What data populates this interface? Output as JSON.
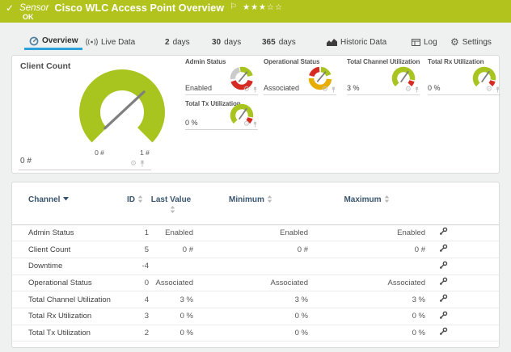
{
  "theme": {
    "brand_green": "#b2c31d",
    "gauge_green": "#a8c41f",
    "status_red": "#d62b23",
    "status_yellow": "#e7ae00",
    "status_gray": "#cbcbcb",
    "accent_blue": "#2ba3da",
    "table_header_navy": "#3a556e",
    "needle_gray": "#7f7f7f"
  },
  "header": {
    "kind_label": "Sensor",
    "title": "Cisco WLC Access Point Overview",
    "status": "OK",
    "rating": {
      "filled": 3,
      "total": 5
    }
  },
  "tabs": [
    {
      "label": "Overview",
      "icon": "gauge",
      "active": true
    },
    {
      "label": "Live Data",
      "icon": "signal"
    },
    {
      "strong": "2",
      "label": "days"
    },
    {
      "strong": "30",
      "label": "days"
    },
    {
      "strong": "365",
      "label": "days"
    },
    {
      "label": "Historic Data",
      "icon": "chart"
    },
    {
      "label": "Log",
      "icon": "log"
    },
    {
      "label": "Settings",
      "icon": "gear"
    }
  ],
  "gauges": {
    "client_count": {
      "label": "Client Count",
      "value": "0 #",
      "scale_min": "0 #",
      "scale_max": "1 #"
    },
    "small": [
      {
        "label": "Admin Status",
        "value": "Enabled",
        "type": "admin"
      },
      {
        "label": "Operational Status",
        "value": "Associated",
        "type": "operational"
      },
      {
        "label": "Total Channel Utilization",
        "value": "3 %",
        "type": "utilization"
      },
      {
        "label": "Total Rx Utilization",
        "value": "0 %",
        "type": "utilization"
      },
      {
        "label": "Total Tx Utilization",
        "value": "0 %",
        "type": "utilization"
      }
    ]
  },
  "table": {
    "columns": [
      "Channel",
      "ID",
      "Last Value",
      "Minimum",
      "Maximum"
    ],
    "rows": [
      {
        "channel": "Admin Status",
        "id": "1",
        "last": "Enabled",
        "min": "Enabled",
        "max": "Enabled"
      },
      {
        "channel": "Client Count",
        "id": "5",
        "last": "0 #",
        "min": "0 #",
        "max": "0 #"
      },
      {
        "channel": "Downtime",
        "id": "-4",
        "last": "",
        "min": "",
        "max": ""
      },
      {
        "channel": "Operational Status",
        "id": "0",
        "last": "Associated",
        "min": "Associated",
        "max": "Associated"
      },
      {
        "channel": "Total Channel Utilization",
        "id": "4",
        "last": "3 %",
        "min": "3 %",
        "max": "3 %"
      },
      {
        "channel": "Total Rx Utilization",
        "id": "3",
        "last": "0 %",
        "min": "0 %",
        "max": "0 %"
      },
      {
        "channel": "Total Tx Utilization",
        "id": "2",
        "last": "0 %",
        "min": "0 %",
        "max": "0 %"
      }
    ]
  }
}
